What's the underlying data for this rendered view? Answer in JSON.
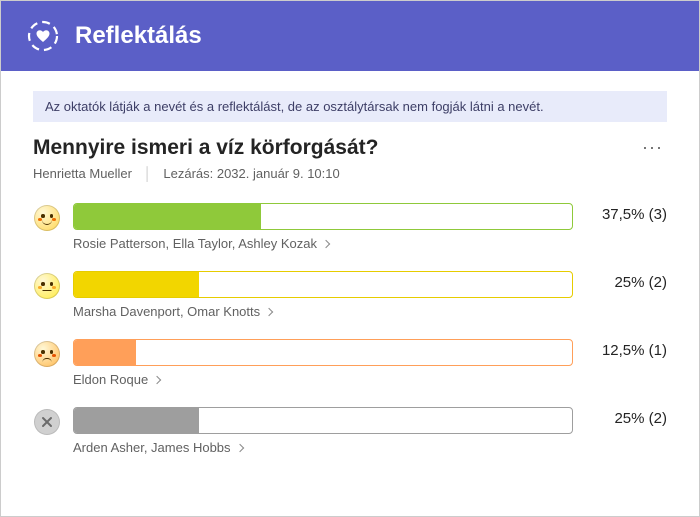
{
  "header": {
    "title": "Reflektálás",
    "icon_color": "#ffffff",
    "background_color": "#5b5fc7"
  },
  "notice": "Az oktatók látják a nevét és a reflektálást, de az osztálytársak nem fogják látni a nevét.",
  "question": "Mennyire ismeri a víz körforgását?",
  "author": "Henrietta Mueller",
  "closing_label": "Lezárás: 2032. január 9. 10:10",
  "more_button_label": "···",
  "results": [
    {
      "mood": "happy",
      "face_color": "#ffd54f",
      "cheek_color": "#ef6c00",
      "bar_color": "#8fc93a",
      "border_color": "#8fc93a",
      "percent": 37.5,
      "percent_label": "37,5% (3)",
      "count": 3,
      "names": "Rosie Patterson, Ella Taylor, Ashley Kozak"
    },
    {
      "mood": "neutral",
      "face_color": "#ffeb3b",
      "cheek_color": "#f9a825",
      "bar_color": "#f2d600",
      "border_color": "#e6cc00",
      "percent": 25,
      "percent_label": "25% (2)",
      "count": 2,
      "names": "Marsha Davenport, Omar Knotts"
    },
    {
      "mood": "sad",
      "face_color": "#ffb74d",
      "cheek_color": "#e65100",
      "bar_color": "#ff9f59",
      "border_color": "#ff9f59",
      "percent": 12.5,
      "percent_label": "12,5% (1)",
      "count": 1,
      "names": "Eldon Roque"
    },
    {
      "mood": "none",
      "face_color": "#bdbdbd",
      "cheek_color": "#bdbdbd",
      "bar_color": "#9e9e9e",
      "border_color": "#9e9e9e",
      "percent": 25,
      "percent_label": "25% (2)",
      "count": 2,
      "names": "Arden Asher, James Hobbs"
    }
  ]
}
